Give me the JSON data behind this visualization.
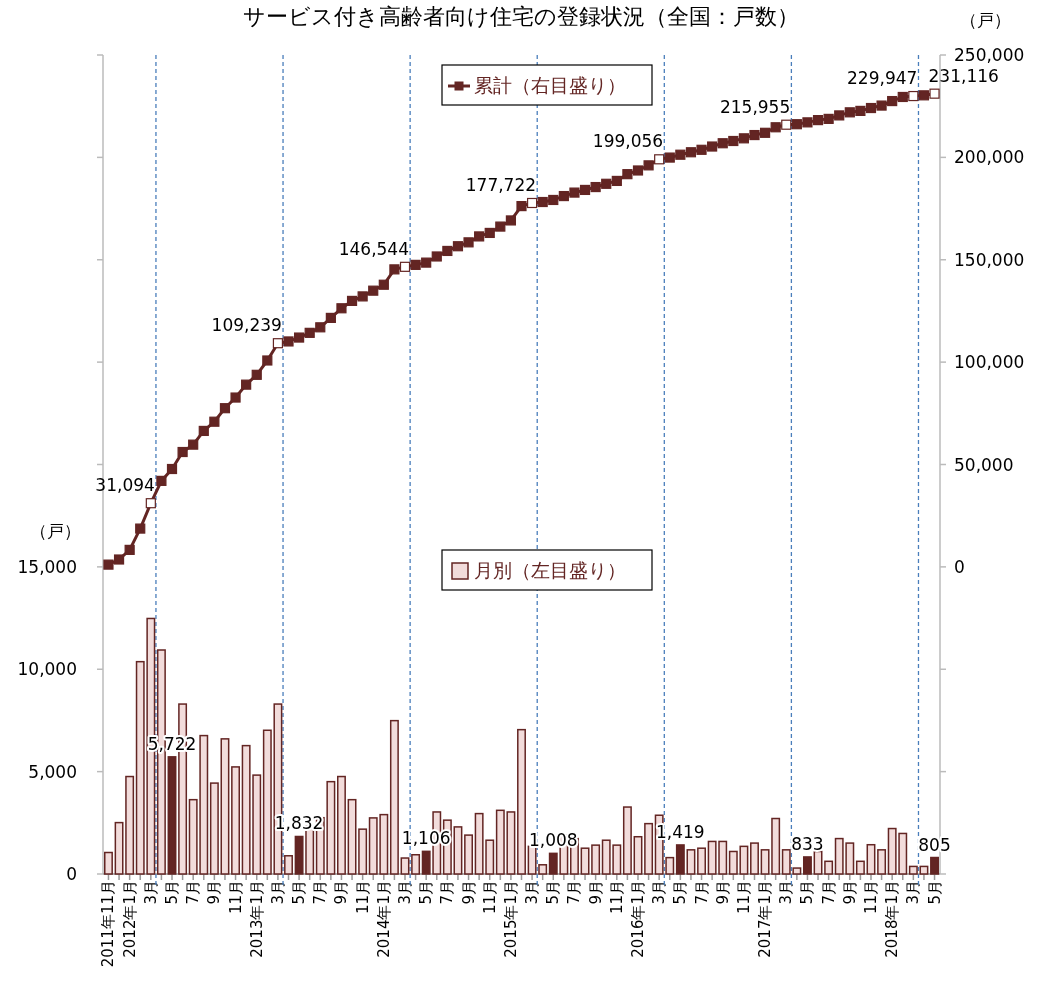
{
  "chart_data": {
    "type": "bar",
    "title": "サービス付き高齢者向け住宅の登録状況（全国：戸数）",
    "ylabel": "（戸）",
    "y2label": "（戸）",
    "x": [
      "2011-11",
      "2011-12",
      "2012-01",
      "2012-02",
      "2012-03",
      "2012-04",
      "2012-05",
      "2012-06",
      "2012-07",
      "2012-08",
      "2012-09",
      "2012-10",
      "2012-11",
      "2012-12",
      "2013-01",
      "2013-02",
      "2013-03",
      "2013-04",
      "2013-05",
      "2013-06",
      "2013-07",
      "2013-08",
      "2013-09",
      "2013-10",
      "2013-11",
      "2013-12",
      "2014-01",
      "2014-02",
      "2014-03",
      "2014-04",
      "2014-05",
      "2014-06",
      "2014-07",
      "2014-08",
      "2014-09",
      "2014-10",
      "2014-11",
      "2014-12",
      "2015-01",
      "2015-02",
      "2015-03",
      "2015-04",
      "2015-05",
      "2015-06",
      "2015-07",
      "2015-08",
      "2015-09",
      "2015-10",
      "2015-11",
      "2015-12",
      "2016-01",
      "2016-02",
      "2016-03",
      "2016-04",
      "2016-05",
      "2016-06",
      "2016-07",
      "2016-08",
      "2016-09",
      "2016-10",
      "2016-11",
      "2016-12",
      "2017-01",
      "2017-02",
      "2017-03",
      "2017-04",
      "2017-05",
      "2017-06",
      "2017-07",
      "2017-08",
      "2017-09",
      "2017-10",
      "2017-11",
      "2017-12",
      "2018-01",
      "2018-02",
      "2018-03",
      "2018-04",
      "2018-05"
    ],
    "xlim": [
      "2011-10-16",
      "2018-05-17"
    ],
    "xticks": [
      {
        "value": "2011-11",
        "label": "2011年11月"
      },
      {
        "value": "2011-12",
        "label": null
      },
      {
        "value": "2012-01",
        "label": "2012年1月"
      },
      {
        "value": "2012-02",
        "label": null
      },
      {
        "value": "2012-03",
        "label": "3月"
      },
      {
        "value": "2012-04",
        "label": null
      },
      {
        "value": "2012-05",
        "label": "5月"
      },
      {
        "value": "2012-06",
        "label": null
      },
      {
        "value": "2012-07",
        "label": "7月"
      },
      {
        "value": "2012-08",
        "label": null
      },
      {
        "value": "2012-09",
        "label": "9月"
      },
      {
        "value": "2012-10",
        "label": null
      },
      {
        "value": "2012-11",
        "label": "11月"
      },
      {
        "value": "2012-12",
        "label": null
      },
      {
        "value": "2013-01",
        "label": "2013年1月"
      },
      {
        "value": "2013-02",
        "label": null
      },
      {
        "value": "2013-03",
        "label": "3月"
      },
      {
        "value": "2013-04",
        "label": null
      },
      {
        "value": "2013-05",
        "label": "5月"
      },
      {
        "value": "2013-06",
        "label": null
      },
      {
        "value": "2013-07",
        "label": "7月"
      },
      {
        "value": "2013-08",
        "label": null
      },
      {
        "value": "2013-09",
        "label": "9月"
      },
      {
        "value": "2013-10",
        "label": null
      },
      {
        "value": "2013-11",
        "label": "11月"
      },
      {
        "value": "2013-12",
        "label": null
      },
      {
        "value": "2014-01",
        "label": "2014年1月"
      },
      {
        "value": "2014-02",
        "label": null
      },
      {
        "value": "2014-03",
        "label": "3月"
      },
      {
        "value": "2014-04",
        "label": null
      },
      {
        "value": "2014-05",
        "label": "5月"
      },
      {
        "value": "2014-06",
        "label": null
      },
      {
        "value": "2014-07",
        "label": "7月"
      },
      {
        "value": "2014-08",
        "label": null
      },
      {
        "value": "2014-09",
        "label": "9月"
      },
      {
        "value": "2014-10",
        "label": null
      },
      {
        "value": "2014-11",
        "label": "11月"
      },
      {
        "value": "2014-12",
        "label": null
      },
      {
        "value": "2015-01",
        "label": "2015年1月"
      },
      {
        "value": "2015-02",
        "label": null
      },
      {
        "value": "2015-03",
        "label": "3月"
      },
      {
        "value": "2015-04",
        "label": null
      },
      {
        "value": "2015-05",
        "label": "5月"
      },
      {
        "value": "2015-06",
        "label": null
      },
      {
        "value": "2015-07",
        "label": "7月"
      },
      {
        "value": "2015-08",
        "label": null
      },
      {
        "value": "2015-09",
        "label": "9月"
      },
      {
        "value": "2015-10",
        "label": null
      },
      {
        "value": "2015-11",
        "label": "11月"
      },
      {
        "value": "2015-12",
        "label": null
      },
      {
        "value": "2016-01",
        "label": "2016年1月"
      },
      {
        "value": "2016-02",
        "label": null
      },
      {
        "value": "2016-03",
        "label": "3月"
      },
      {
        "value": "2016-04",
        "label": null
      },
      {
        "value": "2016-05",
        "label": "5月"
      },
      {
        "value": "2016-06",
        "label": null
      },
      {
        "value": "2016-07",
        "label": "7月"
      },
      {
        "value": "2016-08",
        "label": null
      },
      {
        "value": "2016-09",
        "label": "9月"
      },
      {
        "value": "2016-10",
        "label": null
      },
      {
        "value": "2016-11",
        "label": "11月"
      },
      {
        "value": "2016-12",
        "label": null
      },
      {
        "value": "2017-01",
        "label": "2017年1月"
      },
      {
        "value": "2017-02",
        "label": null
      },
      {
        "value": "2017-03",
        "label": "3月"
      },
      {
        "value": "2017-04",
        "label": null
      },
      {
        "value": "2017-05",
        "label": "5月"
      },
      {
        "value": "2017-06",
        "label": null
      },
      {
        "value": "2017-07",
        "label": "7月"
      },
      {
        "value": "2017-08",
        "label": null
      },
      {
        "value": "2017-09",
        "label": "9月"
      },
      {
        "value": "2017-10",
        "label": null
      },
      {
        "value": "2017-11",
        "label": "11月"
      },
      {
        "value": "2017-12",
        "label": null
      },
      {
        "value": "2018-01",
        "label": "2018年1月"
      },
      {
        "value": "2018-02",
        "label": null
      },
      {
        "value": "2018-03",
        "label": "3月"
      },
      {
        "value": "2018-04",
        "label": null
      },
      {
        "value": "2018-05",
        "label": "5月"
      }
    ],
    "ylim": [
      0,
      40000
    ],
    "yticks": [
      0,
      {
        "value": 5000,
        "label": "5,000"
      },
      {
        "value": 10000,
        "label": "10,000"
      },
      {
        "value": 15000,
        "label": "15,000"
      },
      {
        "value": 20000,
        "label": null
      },
      {
        "value": 25000,
        "label": null
      },
      {
        "value": 30000,
        "label": null
      },
      {
        "value": 35000,
        "label": null
      },
      {
        "value": 40000,
        "label": null
      }
    ],
    "y2lim": [
      -150000,
      250000
    ],
    "y2ticks": [
      {
        "value": -150000,
        "label": null
      },
      {
        "value": -100000,
        "label": null
      },
      {
        "value": -50000,
        "label": null
      },
      {
        "value": 0,
        "label": "0"
      },
      {
        "value": 50000,
        "label": "50,000"
      },
      {
        "value": 100000,
        "label": "100,000"
      },
      {
        "value": 150000,
        "label": "150,000"
      },
      {
        "value": 200000,
        "label": "200,000"
      },
      {
        "value": 250000,
        "label": "250,000"
      }
    ],
    "marker": "square",
    "line_style": "solid",
    "grid": false,
    "legend": "top",
    "ref_lines": [
      {
        "axis": "x",
        "value": "2012-03-16",
        "color": "#4a7ebb",
        "line_style": "dashed"
      },
      {
        "axis": "x",
        "value": "2013-03-16",
        "color": "#4a7ebb",
        "line_style": "dashed"
      },
      {
        "axis": "x",
        "value": "2014-03-16",
        "color": "#4a7ebb",
        "line_style": "dashed"
      },
      {
        "axis": "x",
        "value": "2015-03-16",
        "color": "#4a7ebb",
        "line_style": "dashed"
      },
      {
        "axis": "x",
        "value": "2016-03-16",
        "color": "#4a7ebb",
        "line_style": "dashed"
      },
      {
        "axis": "x",
        "value": "2017-03-16",
        "color": "#4a7ebb",
        "line_style": "dashed"
      },
      {
        "axis": "x",
        "value": "2018-03-16",
        "color": "#4a7ebb",
        "line_style": "dashed"
      }
    ],
    "series": [
      {
        "name": "月別（左目盛り）",
        "color": "#632523",
        "colors": [
          "#f2dcdb",
          "#f2dcdb",
          "#f2dcdb",
          "#f2dcdb",
          "#f2dcdb",
          "#f2dcdb",
          "#632523",
          "#f2dcdb",
          "#f2dcdb",
          "#f2dcdb",
          "#f2dcdb",
          "#f2dcdb",
          "#f2dcdb",
          "#f2dcdb",
          "#f2dcdb",
          "#f2dcdb",
          "#f2dcdb",
          "#f2dcdb",
          "#632523",
          "#f2dcdb",
          "#f2dcdb",
          "#f2dcdb",
          "#f2dcdb",
          "#f2dcdb",
          "#f2dcdb",
          "#f2dcdb",
          "#f2dcdb",
          "#f2dcdb",
          "#f2dcdb",
          "#f2dcdb",
          "#632523",
          "#f2dcdb",
          "#f2dcdb",
          "#f2dcdb",
          "#f2dcdb",
          "#f2dcdb",
          "#f2dcdb",
          "#f2dcdb",
          "#f2dcdb",
          "#f2dcdb",
          "#f2dcdb",
          "#f2dcdb",
          "#632523",
          "#f2dcdb",
          "#f2dcdb",
          "#f2dcdb",
          "#f2dcdb",
          "#f2dcdb",
          "#f2dcdb",
          "#f2dcdb",
          "#f2dcdb",
          "#f2dcdb",
          "#f2dcdb",
          "#f2dcdb",
          "#632523",
          "#f2dcdb",
          "#f2dcdb",
          "#f2dcdb",
          "#f2dcdb",
          "#f2dcdb",
          "#f2dcdb",
          "#f2dcdb",
          "#f2dcdb",
          "#f2dcdb",
          "#f2dcdb",
          "#f2dcdb",
          "#632523",
          "#f2dcdb",
          "#f2dcdb",
          "#f2dcdb",
          "#f2dcdb",
          "#f2dcdb",
          "#f2dcdb",
          "#f2dcdb",
          "#f2dcdb",
          "#f2dcdb",
          "#f2dcdb",
          "#f2dcdb",
          "#632523"
        ],
        "values": [
          1050,
          2510,
          4760,
          10370,
          12480,
          10940,
          5722,
          8300,
          3630,
          6760,
          4440,
          6600,
          5230,
          6270,
          4830,
          7020,
          8300,
          890,
          1832,
          2330,
          2750,
          4510,
          4760,
          3630,
          2190,
          2740,
          2900,
          7490,
          780,
          940,
          1106,
          3030,
          2630,
          2300,
          1900,
          2950,
          1650,
          3110,
          3030,
          7050,
          1350,
          450,
          1008,
          1900,
          1730,
          1260,
          1410,
          1650,
          1410,
          3270,
          1820,
          2460,
          2870,
          800,
          1419,
          1180,
          1260,
          1590,
          1590,
          1100,
          1350,
          1510,
          1180,
          2710,
          1180,
          290,
          833,
          1100,
          620,
          1730,
          1510,
          620,
          1430,
          1180,
          2220,
          1980,
          370,
          370,
          805
        ],
        "value_labels": [
          null,
          null,
          null,
          null,
          null,
          null,
          "5,722",
          null,
          null,
          null,
          null,
          null,
          null,
          null,
          null,
          null,
          null,
          null,
          "1,832",
          null,
          null,
          null,
          null,
          null,
          null,
          null,
          null,
          null,
          null,
          null,
          "1,106",
          null,
          null,
          null,
          null,
          null,
          null,
          null,
          null,
          null,
          null,
          null,
          "1,008",
          null,
          null,
          null,
          null,
          null,
          null,
          null,
          null,
          null,
          null,
          null,
          "1,419",
          null,
          null,
          null,
          null,
          null,
          null,
          null,
          null,
          null,
          null,
          null,
          "833",
          null,
          null,
          null,
          null,
          null,
          null,
          null,
          null,
          null,
          null,
          null,
          "805"
        ]
      },
      {
        "name": "累計（右目盛り）",
        "type": "line",
        "axis": "y2",
        "color": "#632523",
        "colors": [
          "#632523",
          "#632523",
          "#632523",
          "#632523",
          "#ffffff",
          "#632523",
          "#632523",
          "#632523",
          "#632523",
          "#632523",
          "#632523",
          "#632523",
          "#632523",
          "#632523",
          "#632523",
          "#632523",
          "#ffffff",
          "#632523",
          "#632523",
          "#632523",
          "#632523",
          "#632523",
          "#632523",
          "#632523",
          "#632523",
          "#632523",
          "#632523",
          "#632523",
          "#ffffff",
          "#632523",
          "#632523",
          "#632523",
          "#632523",
          "#632523",
          "#632523",
          "#632523",
          "#632523",
          "#632523",
          "#632523",
          "#632523",
          "#ffffff",
          "#632523",
          "#632523",
          "#632523",
          "#632523",
          "#632523",
          "#632523",
          "#632523",
          "#632523",
          "#632523",
          "#632523",
          "#632523",
          "#ffffff",
          "#632523",
          "#632523",
          "#632523",
          "#632523",
          "#632523",
          "#632523",
          "#632523",
          "#632523",
          "#632523",
          "#632523",
          "#632523",
          "#ffffff",
          "#632523",
          "#632523",
          "#632523",
          "#632523",
          "#632523",
          "#632523",
          "#632523",
          "#632523",
          "#632523",
          "#632523",
          "#632523",
          "#ffffff",
          "#632523",
          "#ffffff"
        ],
        "values": [
          1100,
          3600,
          8300,
          18700,
          31094,
          42000,
          47800,
          56100,
          59700,
          66400,
          70900,
          77500,
          82700,
          89000,
          93800,
          100800,
          109239,
          110100,
          112000,
          114300,
          117000,
          121600,
          126300,
          129900,
          132100,
          134900,
          137800,
          145300,
          146544,
          147500,
          148600,
          151600,
          154300,
          156600,
          158500,
          161400,
          163100,
          166200,
          169200,
          176200,
          177722,
          178200,
          179200,
          181100,
          182800,
          184100,
          185500,
          187100,
          188500,
          191800,
          193600,
          196100,
          199056,
          199900,
          201300,
          202500,
          203700,
          205300,
          206900,
          208000,
          209300,
          210900,
          212000,
          214700,
          215955,
          216200,
          217100,
          218200,
          218800,
          220500,
          222000,
          222700,
          224100,
          225300,
          227500,
          229500,
          229947,
          230300,
          231116
        ],
        "value_labels": [
          null,
          null,
          null,
          null,
          "31,094",
          null,
          null,
          null,
          null,
          null,
          null,
          null,
          null,
          null,
          null,
          null,
          "109,239",
          null,
          null,
          null,
          null,
          null,
          null,
          null,
          null,
          null,
          null,
          null,
          "146,544",
          null,
          null,
          null,
          null,
          null,
          null,
          null,
          null,
          null,
          null,
          null,
          "177,722",
          null,
          null,
          null,
          null,
          null,
          null,
          null,
          null,
          null,
          null,
          null,
          "199,056",
          null,
          null,
          null,
          null,
          null,
          null,
          null,
          null,
          null,
          null,
          null,
          "215,955",
          null,
          null,
          null,
          null,
          null,
          null,
          null,
          null,
          null,
          null,
          null,
          "229,947",
          null,
          "231,116"
        ]
      }
    ]
  }
}
